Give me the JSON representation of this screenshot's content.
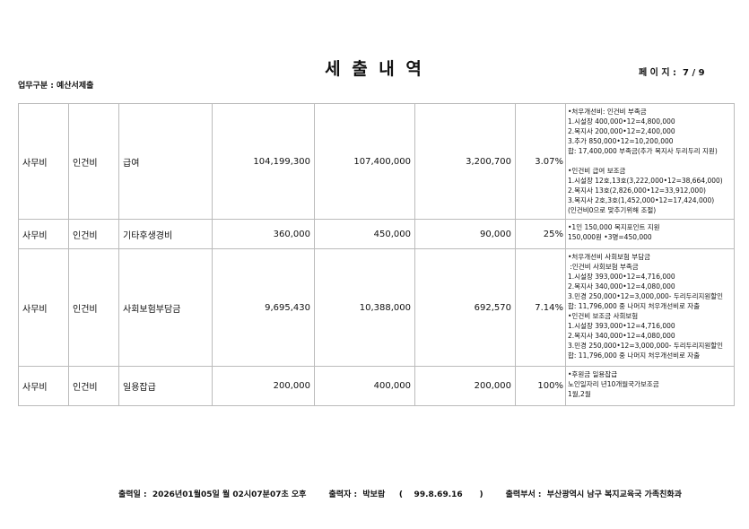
{
  "header": {
    "title": "세 출 내 역",
    "page_label": "페 이 지 :",
    "page_value": "7 / 9",
    "category": "업무구분 : 예산서제출"
  },
  "rows": [
    {
      "c1": "사무비",
      "c2": "인건비",
      "c3": "급여",
      "v1": "104,199,300",
      "v2": "107,400,000",
      "v3": "3,200,700",
      "pct": "3.07%",
      "note": "•처우개선비: 인건비 부족금\n1.시설장 400,000•12=4,800,000\n2.복지사 200,000•12=2,400,000\n3.추가 850,000•12=10,200,000\n합: 17,400,000 부족금(추가 복지사 두리두리 지원)\n\n•인건비 급여 보조금\n1.시설장 12호,13호(3,222,000•12=38,664,000)\n2.복지사 13호(2,826,000•12=33,912,000)\n3.복지사 2호,3호(1,452,000•12=17,424,000)\n(인건비0으로 맞추기위해 조절)"
    },
    {
      "c1": "사무비",
      "c2": "인건비",
      "c3": "기타후생경비",
      "v1": "360,000",
      "v2": "450,000",
      "v3": "90,000",
      "pct": "25%",
      "note": "•1인 150,000 복지포인트 지원\n150,000원 •3명=450,000"
    },
    {
      "c1": "사무비",
      "c2": "인건비",
      "c3": "사회보험부담금",
      "v1": "9,695,430",
      "v2": "10,388,000",
      "v3": "692,570",
      "pct": "7.14%",
      "note": "•처우개선비 사회보험 부담금\n :인건비 사회보험 부족금\n1.시설장 393,000•12=4,716,000\n2.복지사 340,000•12=4,080,000\n3.민경 250,000•12=3,000,000- 두리두리지원할인\n합: 11,796,000 중 나머지 처우개선비로 자출\n•인건비 보조금 사회보험\n1.시설장 393,000•12=4,716,000\n2.복지사 340,000•12=4,080,000\n3.민경 250,000•12=3,000,000- 두리두리지원할인\n합: 11,796,000 중 나머지 처우개선비로 자출"
    },
    {
      "c1": "사무비",
      "c2": "인건비",
      "c3": "일용잡급",
      "v1": "200,000",
      "v2": "400,000",
      "v3": "200,000",
      "pct": "100%",
      "note": "•후원금 일용잡급\n노인일자리 년10개월국가보조금\n1월,2월"
    }
  ],
  "footer": {
    "date_label": "출력일 :",
    "date": "2026년01월05일 월 02시07분07초 오후",
    "user_label": "출력자 :",
    "user": "박보람",
    "ip": "(    99.8.69.16      )",
    "dept_label": "출력부서 :",
    "dept": "부산광역시 남구 복지교육국 가족친화과"
  }
}
